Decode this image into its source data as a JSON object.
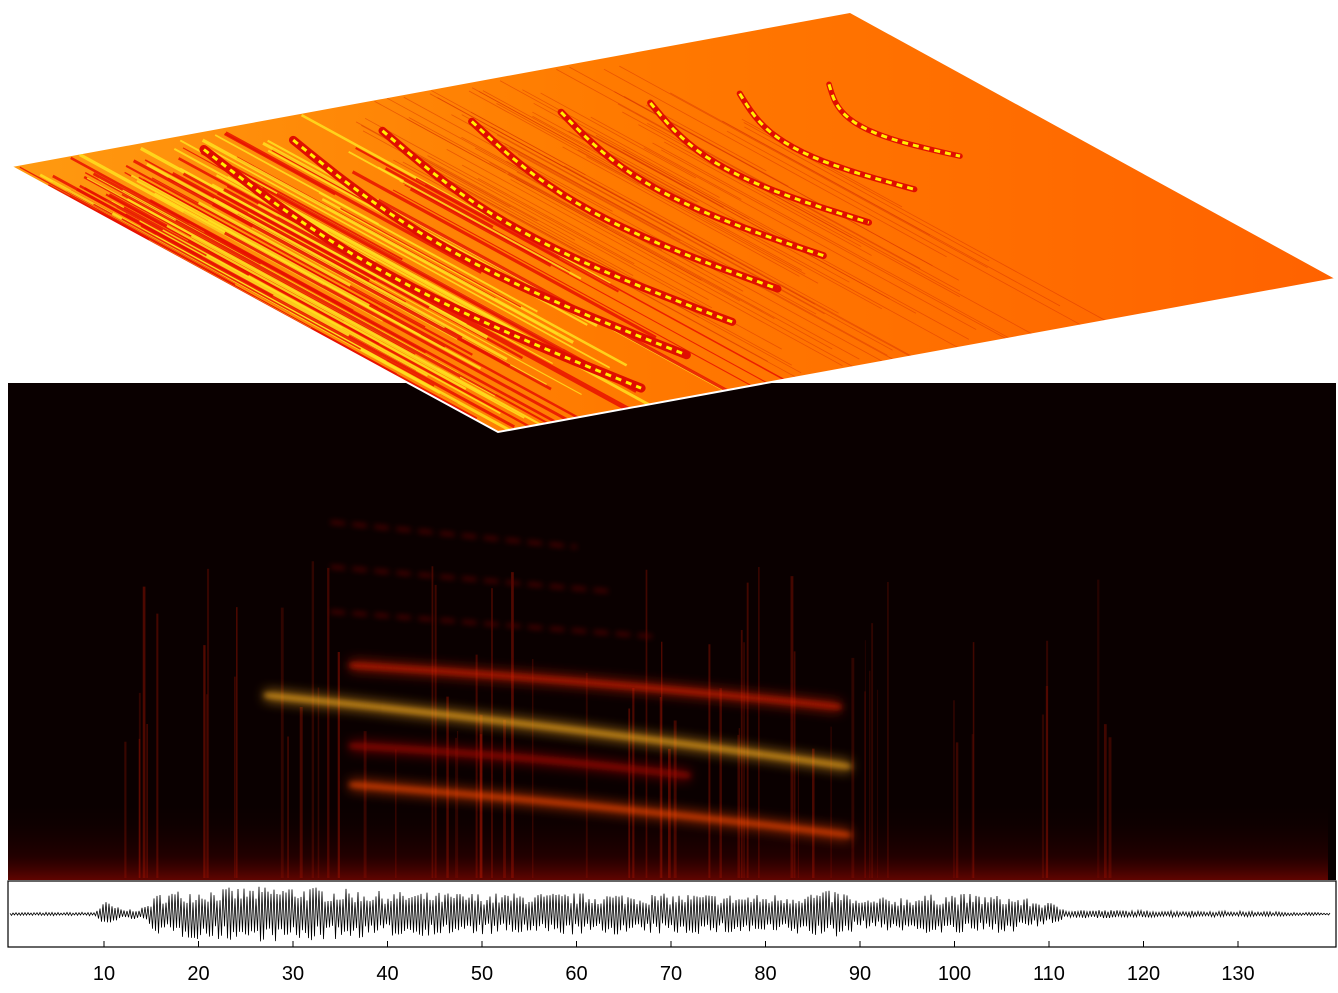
{
  "chart_data": [
    {
      "type": "surface",
      "colormap": "hot",
      "description_level": "high-amplitude surface of the spectrogram shown in perspective",
      "ridge_count": 8
    },
    {
      "type": "heatmap",
      "colormap": "hot",
      "background_color": "#0a0000",
      "harmonic_tracks": [
        {
          "x_start": 27,
          "x_end": 89,
          "level_start": 0.62,
          "level_end": 0.38
        },
        {
          "x_start": 36,
          "x_end": 89,
          "level_start": 0.32,
          "level_end": 0.15
        },
        {
          "x_start": 36,
          "x_end": 88,
          "level_start": 0.72,
          "level_end": 0.58
        },
        {
          "x_start": 36,
          "x_end": 72,
          "level_start": 0.45,
          "level_end": 0.35
        }
      ]
    },
    {
      "type": "line",
      "signal": "waveform",
      "xlim": [
        0,
        140
      ],
      "x_ticks": [
        10,
        20,
        30,
        40,
        50,
        60,
        70,
        80,
        90,
        100,
        110,
        120,
        130
      ],
      "amplitude_envelope": [
        {
          "x": 0,
          "a": 0.05
        },
        {
          "x": 9,
          "a": 0.06
        },
        {
          "x": 10,
          "a": 0.45
        },
        {
          "x": 12,
          "a": 0.15
        },
        {
          "x": 14,
          "a": 0.2
        },
        {
          "x": 16,
          "a": 0.75
        },
        {
          "x": 20,
          "a": 0.85
        },
        {
          "x": 30,
          "a": 0.95
        },
        {
          "x": 40,
          "a": 0.75
        },
        {
          "x": 50,
          "a": 0.7
        },
        {
          "x": 60,
          "a": 0.7
        },
        {
          "x": 70,
          "a": 0.68
        },
        {
          "x": 80,
          "a": 0.65
        },
        {
          "x": 88,
          "a": 0.8
        },
        {
          "x": 90,
          "a": 0.45
        },
        {
          "x": 92,
          "a": 0.55
        },
        {
          "x": 100,
          "a": 0.7
        },
        {
          "x": 106,
          "a": 0.6
        },
        {
          "x": 110,
          "a": 0.4
        },
        {
          "x": 112,
          "a": 0.15
        },
        {
          "x": 120,
          "a": 0.12
        },
        {
          "x": 130,
          "a": 0.1
        },
        {
          "x": 134,
          "a": 0.08
        },
        {
          "x": 140,
          "a": 0.04
        }
      ]
    }
  ],
  "colors": {
    "waveform": "#000000",
    "surface_base": "#ff6a00",
    "surface_ridge": "#e80f00",
    "surface_peak": "#fff200"
  }
}
